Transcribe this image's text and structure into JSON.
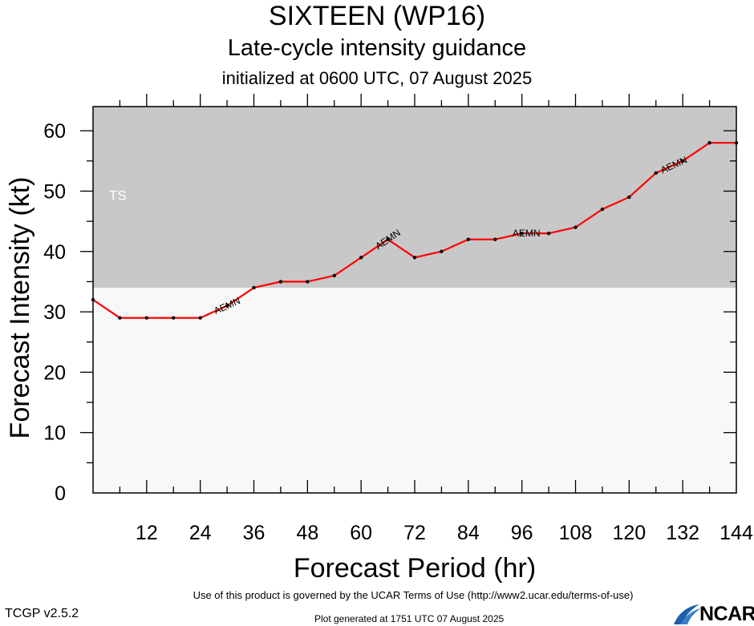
{
  "header": {
    "title": "SIXTEEN (WP16)",
    "subtitle": "Late-cycle intensity guidance",
    "init": "initialized at 0600 UTC, 07 August 2025"
  },
  "footer": {
    "terms": "Use of this product is governed by the UCAR Terms of Use (http://www2.ucar.edu/terms-of-use)",
    "version": "TCGP v2.5.2",
    "generated": "Plot generated at 1751 UTC   07 August 2025",
    "logo_text": "NCAR"
  },
  "chart_data": {
    "type": "line",
    "title": "SIXTEEN (WP16)",
    "xlabel": "Forecast Period (hr)",
    "ylabel": "Forecast Intensity (kt)",
    "xlim": [
      0,
      144
    ],
    "ylim": [
      0,
      64
    ],
    "x_ticks": [
      12,
      24,
      36,
      48,
      60,
      72,
      84,
      96,
      108,
      120,
      132,
      144
    ],
    "y_ticks": [
      0,
      10,
      20,
      30,
      40,
      50,
      60
    ],
    "bands": [
      {
        "label": "",
        "from": 0,
        "to": 34,
        "color": "#f8f8f8"
      },
      {
        "label": "TS",
        "from": 34,
        "to": 64,
        "color": "#c8c8c8"
      }
    ],
    "series": [
      {
        "name": "AEMN",
        "color": "#ff0000",
        "x": [
          0,
          6,
          12,
          18,
          24,
          30,
          36,
          42,
          48,
          54,
          60,
          66,
          72,
          78,
          84,
          90,
          96,
          102,
          108,
          114,
          120,
          126,
          132,
          138,
          144
        ],
        "values": [
          32,
          29,
          29,
          29,
          29,
          31,
          34,
          35,
          35,
          36,
          39,
          42,
          39,
          40,
          42,
          42,
          43,
          43,
          44,
          47,
          49,
          53,
          55,
          58,
          58
        ],
        "label_at_x": [
          30,
          66,
          97,
          130
        ]
      }
    ]
  }
}
